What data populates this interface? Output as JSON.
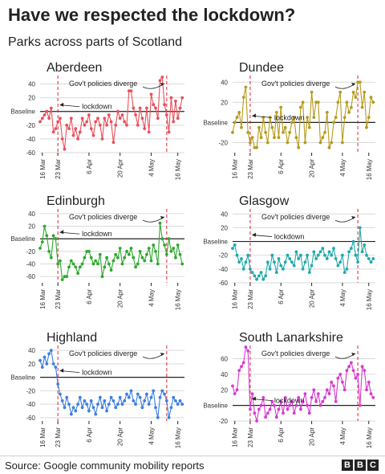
{
  "title": "Have we respected the lockdown?",
  "subtitle": "Parks across parts of Scotland",
  "source": "Source: Google community mobility reports",
  "logo": [
    "B",
    "B",
    "C"
  ],
  "annotations": {
    "lockdown": "lockdown",
    "diverge": "Gov't policies diverge"
  },
  "baseline_label": "Baseline",
  "chart_data": [
    {
      "type": "line",
      "title": "Aberdeen",
      "color": "#e8505b",
      "ylim": [
        -60,
        50
      ],
      "yticks": [
        40,
        20,
        -20,
        -40,
        -60
      ],
      "xticks": [
        "16 Mar",
        "23 Mar",
        "6 Apr",
        "20 Apr",
        "4 May",
        "16 May"
      ],
      "x_range": [
        "2020-03-15",
        "2020-05-19"
      ],
      "lockdown_date": "2020-03-23",
      "diverge_date": "2020-05-11",
      "x_start": "2020-03-15",
      "values": [
        -15,
        -10,
        -5,
        0,
        -10,
        5,
        -30,
        -25,
        -15,
        -10,
        -40,
        -55,
        -20,
        -25,
        -10,
        -35,
        -25,
        -40,
        -30,
        -10,
        -20,
        -15,
        -5,
        -25,
        -35,
        -15,
        -10,
        -20,
        -40,
        -10,
        -20,
        -5,
        -15,
        -45,
        -20,
        0,
        -10,
        -5,
        -15,
        -20,
        30,
        30,
        5,
        -5,
        -20,
        5,
        -10,
        -25,
        5,
        -30,
        25,
        10,
        5,
        -10,
        45,
        50,
        10,
        -5,
        -30,
        20,
        -15,
        15,
        -10,
        5,
        20
      ]
    },
    {
      "type": "line",
      "title": "Dundee",
      "color": "#b59b1b",
      "ylim": [
        -30,
        45
      ],
      "yticks": [
        40,
        20,
        -20
      ],
      "xticks": [
        "16 Mar",
        "23 Mar",
        "6 Apr",
        "20 Apr",
        "4 May",
        "16 May"
      ],
      "x_range": [
        "2020-03-15",
        "2020-05-19"
      ],
      "lockdown_date": "2020-03-23",
      "diverge_date": "2020-05-11",
      "x_start": "2020-03-15",
      "values": [
        -10,
        0,
        5,
        10,
        -5,
        25,
        35,
        -10,
        -20,
        -15,
        -25,
        -25,
        -5,
        -15,
        5,
        -10,
        -20,
        5,
        -5,
        -15,
        10,
        -15,
        15,
        -10,
        -5,
        -20,
        -10,
        0,
        5,
        -15,
        -25,
        15,
        20,
        -20,
        5,
        -5,
        30,
        5,
        20,
        20,
        -20,
        -15,
        -10,
        10,
        -25,
        -20,
        0,
        5,
        20,
        30,
        -20,
        5,
        20,
        10,
        15,
        30,
        25,
        40,
        40,
        15,
        30,
        -5,
        5,
        25,
        20
      ]
    },
    {
      "type": "line",
      "title": "Edinburgh",
      "color": "#2ea82e",
      "ylim": [
        -70,
        45
      ],
      "yticks": [
        40,
        20,
        -20,
        -40,
        -60
      ],
      "xticks": [
        "16 Mar",
        "23 Mar",
        "6 Apr",
        "20 Apr",
        "4 May",
        "16 May"
      ],
      "x_range": [
        "2020-03-15",
        "2020-05-19"
      ],
      "lockdown_date": "2020-03-23",
      "diverge_date": "2020-05-11",
      "x_start": "2020-03-15",
      "values": [
        -15,
        -5,
        20,
        5,
        -20,
        -30,
        5,
        0,
        -40,
        -35,
        -65,
        -60,
        -60,
        -45,
        -35,
        -40,
        -45,
        -55,
        -45,
        -40,
        -30,
        -20,
        -20,
        -30,
        -40,
        -35,
        -40,
        -25,
        -60,
        -45,
        -30,
        -40,
        -50,
        -35,
        -25,
        -30,
        -15,
        -40,
        -30,
        -20,
        -25,
        -15,
        -30,
        -45,
        -40,
        -20,
        -30,
        -35,
        -25,
        -15,
        -35,
        -10,
        -20,
        -40,
        25,
        0,
        -10,
        -25,
        0,
        -20,
        -15,
        -30,
        -10,
        -25,
        -40
      ]
    },
    {
      "type": "line",
      "title": "Glasgow",
      "color": "#22a9a9",
      "ylim": [
        -60,
        45
      ],
      "yticks": [
        40,
        20,
        -20,
        -40,
        -60
      ],
      "xticks": [
        "16 Mar",
        "23 Mar",
        "6 Apr",
        "20 Apr",
        "4 May",
        "16 May"
      ],
      "x_range": [
        "2020-03-15",
        "2020-05-19"
      ],
      "lockdown_date": "2020-03-23",
      "diverge_date": "2020-05-11",
      "x_start": "2020-03-15",
      "values": [
        -10,
        -5,
        -20,
        -30,
        -25,
        -40,
        -30,
        -20,
        -40,
        -45,
        -50,
        -55,
        -50,
        -45,
        -55,
        -50,
        -30,
        -40,
        -20,
        -30,
        -45,
        -25,
        -35,
        -40,
        -30,
        -20,
        -25,
        -30,
        -35,
        -15,
        -25,
        -20,
        -40,
        -30,
        -20,
        -45,
        -35,
        -15,
        -25,
        -20,
        -15,
        -10,
        -20,
        -25,
        -15,
        -20,
        -10,
        -25,
        -35,
        -30,
        -20,
        -45,
        -40,
        -15,
        -10,
        0,
        -20,
        -30,
        20,
        -15,
        -5,
        -20,
        -25,
        -30,
        -25
      ]
    },
    {
      "type": "line",
      "title": "Highland",
      "color": "#3d7fe0",
      "ylim": [
        -65,
        45
      ],
      "yticks": [
        40,
        20,
        -20,
        -40,
        -60
      ],
      "xticks": [
        "16 Mar",
        "23 Mar",
        "6 Apr",
        "20 Apr",
        "4 May",
        "16 May"
      ],
      "x_range": [
        "2020-03-15",
        "2020-05-19"
      ],
      "lockdown_date": "2020-03-23",
      "diverge_date": "2020-05-11",
      "x_start": "2020-03-15",
      "values": [
        25,
        15,
        30,
        20,
        35,
        40,
        20,
        15,
        -10,
        -25,
        -35,
        -45,
        -30,
        -40,
        -55,
        -45,
        -50,
        -40,
        -30,
        -45,
        -35,
        -40,
        -50,
        -35,
        -45,
        -55,
        -40,
        -30,
        -45,
        -35,
        -50,
        -40,
        -30,
        -35,
        -45,
        -40,
        -30,
        -40,
        -35,
        -25,
        -30,
        -20,
        -35,
        -40,
        -25,
        -30,
        -45,
        -35,
        -25,
        -40,
        -30,
        -20,
        -45,
        -60,
        -30,
        -20,
        -25,
        -35,
        -60,
        -45,
        -30,
        -35,
        -40,
        -35,
        -40
      ]
    },
    {
      "type": "line",
      "title": "South Lanarkshire",
      "color": "#d63ad0",
      "ylim": [
        -20,
        75
      ],
      "yticks": [
        60,
        40,
        20,
        -20
      ],
      "xticks": [
        "16 Mar",
        "23 Mar",
        "6 Apr",
        "20 Apr",
        "4 May",
        "16 May"
      ],
      "x_range": [
        "2020-03-15",
        "2020-05-19"
      ],
      "lockdown_date": "2020-03-23",
      "diverge_date": "2020-05-11",
      "x_start": "2020-03-15",
      "values": [
        25,
        15,
        20,
        45,
        50,
        55,
        75,
        70,
        -5,
        15,
        -10,
        -20,
        -5,
        0,
        10,
        -15,
        -10,
        -5,
        5,
        0,
        -15,
        -5,
        5,
        -10,
        10,
        -5,
        0,
        5,
        -10,
        0,
        10,
        -5,
        5,
        15,
        0,
        -10,
        10,
        20,
        5,
        15,
        0,
        5,
        10,
        20,
        15,
        30,
        25,
        5,
        35,
        40,
        30,
        20,
        45,
        50,
        55,
        45,
        35,
        40,
        0,
        50,
        45,
        20,
        30,
        15,
        10
      ]
    }
  ]
}
